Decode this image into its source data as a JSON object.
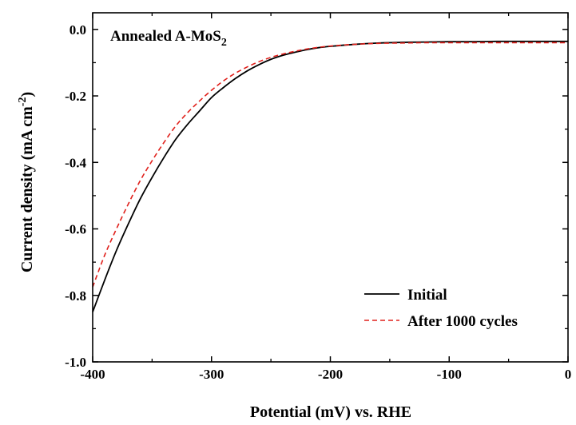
{
  "chart_data": {
    "type": "line",
    "annotation": {
      "main": "Annealed A-MoS",
      "subscript": "2"
    },
    "xlabel": "Potential (mV) vs. RHE",
    "ylabel": {
      "main": "Current density (mA cm",
      "superscript": "-2",
      "closing": ")"
    },
    "xlim": [
      -400,
      0
    ],
    "ylim": [
      -1.0,
      0.05
    ],
    "x_ticks": [
      -400,
      -300,
      -200,
      -100,
      0
    ],
    "x_tick_labels": [
      "-400",
      "-300",
      "-200",
      "-100",
      "0"
    ],
    "y_ticks": [
      -1.0,
      -0.8,
      -0.6,
      -0.4,
      -0.2,
      0.0
    ],
    "y_tick_labels": [
      "-1.0",
      "-0.8",
      "-0.6",
      "-0.4",
      "-0.2",
      "0.0"
    ],
    "grid": false,
    "legend_position": "bottom-right",
    "series": [
      {
        "name": "Initial",
        "color": "#000000",
        "dash": "solid",
        "x": [
          -400,
          -390,
          -380,
          -370,
          -360,
          -350,
          -340,
          -330,
          -320,
          -310,
          -300,
          -290,
          -280,
          -270,
          -260,
          -250,
          -240,
          -230,
          -220,
          -210,
          -200,
          -180,
          -160,
          -140,
          -120,
          -100,
          -80,
          -60,
          -40,
          -20,
          0
        ],
        "y": [
          -0.85,
          -0.755,
          -0.665,
          -0.585,
          -0.51,
          -0.445,
          -0.385,
          -0.33,
          -0.285,
          -0.245,
          -0.205,
          -0.175,
          -0.148,
          -0.125,
          -0.106,
          -0.09,
          -0.078,
          -0.069,
          -0.061,
          -0.055,
          -0.051,
          -0.045,
          -0.041,
          -0.039,
          -0.038,
          -0.037,
          -0.037,
          -0.036,
          -0.036,
          -0.036,
          -0.036
        ]
      },
      {
        "name": "After 1000 cycles",
        "color": "#e0201b",
        "dash": "dashed",
        "x": [
          -400,
          -390,
          -380,
          -370,
          -360,
          -350,
          -340,
          -330,
          -320,
          -310,
          -300,
          -290,
          -280,
          -270,
          -260,
          -250,
          -240,
          -230,
          -220,
          -210,
          -200,
          -180,
          -160,
          -140,
          -120,
          -100,
          -80,
          -60,
          -40,
          -20,
          0
        ],
        "y": [
          -0.775,
          -0.68,
          -0.6,
          -0.525,
          -0.455,
          -0.395,
          -0.34,
          -0.29,
          -0.25,
          -0.215,
          -0.183,
          -0.155,
          -0.132,
          -0.113,
          -0.097,
          -0.084,
          -0.074,
          -0.066,
          -0.059,
          -0.054,
          -0.05,
          -0.045,
          -0.042,
          -0.041,
          -0.04,
          -0.04,
          -0.04,
          -0.04,
          -0.04,
          -0.04,
          -0.04
        ]
      }
    ]
  }
}
